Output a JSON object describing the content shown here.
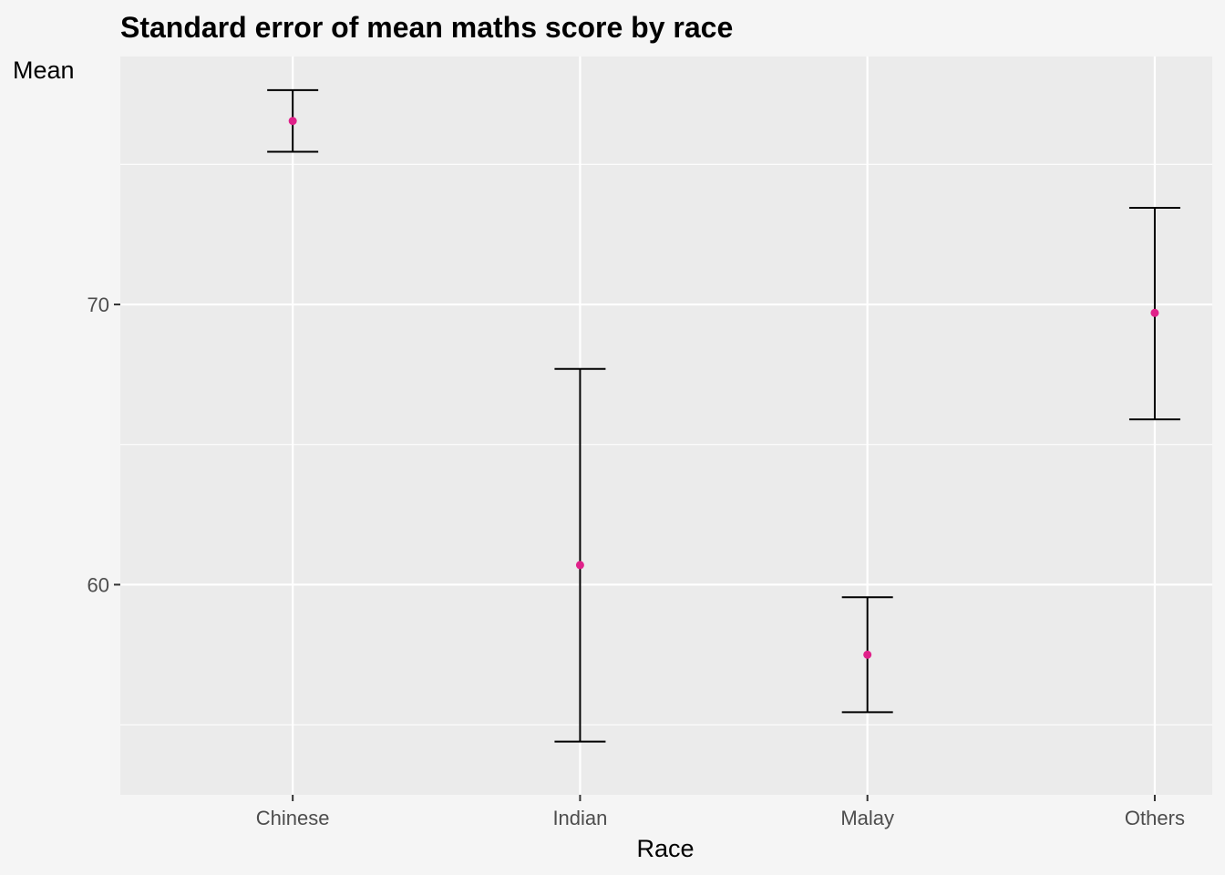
{
  "chart_data": {
    "type": "errorbar",
    "title": "Standard error of mean maths score by race",
    "xlabel": "Race",
    "ylabel": "Mean",
    "categories": [
      "Chinese",
      "Indian",
      "Malay",
      "Others"
    ],
    "mean": [
      76.55,
      60.7,
      57.5,
      69.7
    ],
    "lower": [
      75.45,
      54.4,
      55.45,
      65.9
    ],
    "upper": [
      77.65,
      67.7,
      59.55,
      73.45
    ],
    "ylim": [
      52.5,
      78.85
    ],
    "yticks": [
      60,
      70
    ],
    "grid": true,
    "colors": {
      "panel": "#ebebeb",
      "background": "#f5f5f5",
      "gridline": "#ffffff",
      "errorbar": "#000000",
      "point": "#e0218a"
    }
  }
}
